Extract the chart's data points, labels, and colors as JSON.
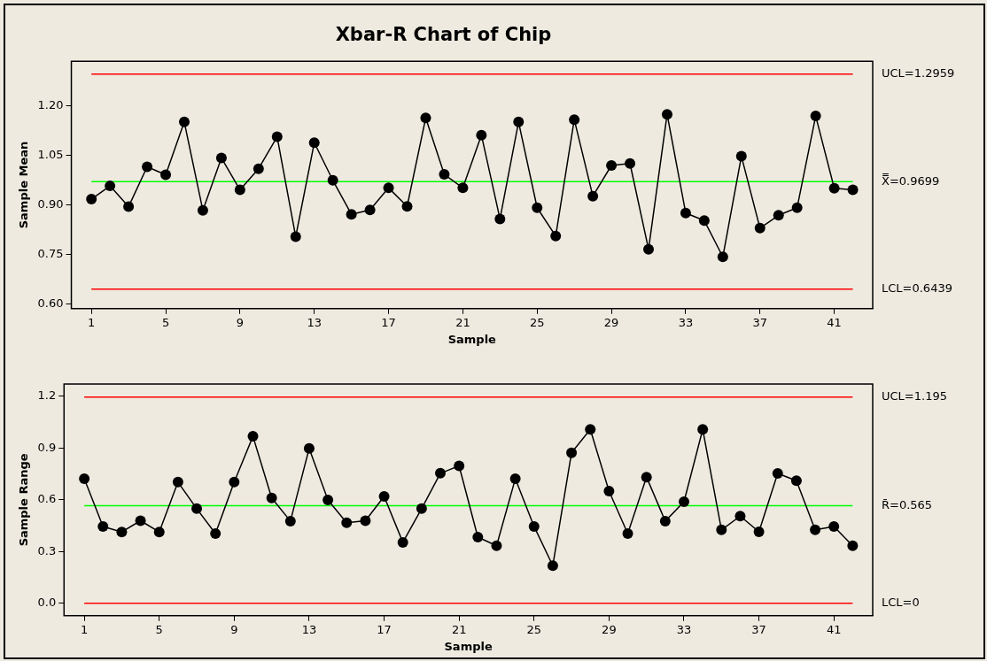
{
  "chart_data": [
    {
      "type": "line",
      "title": "Xbar-R Chart of Chip",
      "xlabel": "Sample",
      "ylabel": "Sample Mean",
      "marker": "circle",
      "grid": false,
      "x": [
        1,
        2,
        3,
        4,
        5,
        6,
        7,
        8,
        9,
        10,
        11,
        12,
        13,
        14,
        15,
        16,
        17,
        18,
        19,
        20,
        21,
        22,
        23,
        24,
        25,
        26,
        27,
        28,
        29,
        30,
        31,
        32,
        33,
        34,
        35,
        36,
        37,
        38,
        39,
        40,
        41,
        42
      ],
      "series": [
        {
          "color": "#000000",
          "values": [
            0.917,
            0.957,
            0.894,
            1.015,
            0.991,
            1.151,
            0.883,
            1.042,
            0.945,
            1.009,
            1.106,
            0.803,
            1.088,
            0.974,
            0.871,
            0.884,
            0.951,
            0.895,
            1.163,
            0.992,
            0.951,
            1.111,
            0.857,
            1.151,
            0.891,
            0.805,
            1.158,
            0.926,
            1.019,
            1.025,
            0.765,
            1.174,
            0.875,
            0.852,
            0.742,
            1.047,
            0.829,
            0.868,
            0.891,
            1.169,
            0.95,
            0.945
          ]
        }
      ],
      "xlim": [
        -0.08,
        43.07
      ],
      "xticks": [
        1,
        5,
        9,
        13,
        17,
        21,
        25,
        29,
        33,
        37,
        41
      ],
      "ylim": [
        0.585,
        1.335
      ],
      "yticks": [
        {
          "value": 0.6,
          "label": "0.60"
        },
        0.75,
        {
          "value": 0.9,
          "label": "0.90"
        },
        1.05,
        {
          "value": 1.2,
          "label": "1.20"
        }
      ],
      "ref_lines": [
        {
          "axis": "y",
          "value": 1.2959,
          "label": "UCL=1.2959",
          "color": "#ff0000"
        },
        {
          "axis": "y",
          "value": 0.9699,
          "label": "X̿=0.9699",
          "color": "#00ff00"
        },
        {
          "axis": "y",
          "value": 0.6439,
          "label": "LCL=0.6439",
          "color": "#ff0000"
        }
      ]
    },
    {
      "type": "line",
      "xlabel": "Sample",
      "ylabel": "Sample Range",
      "marker": "circle",
      "grid": false,
      "x": [
        1,
        2,
        3,
        4,
        5,
        6,
        7,
        8,
        9,
        10,
        11,
        12,
        13,
        14,
        15,
        16,
        17,
        18,
        19,
        20,
        21,
        22,
        23,
        24,
        25,
        26,
        27,
        28,
        29,
        30,
        31,
        32,
        33,
        34,
        35,
        36,
        37,
        38,
        39,
        40,
        41,
        42
      ],
      "series": [
        {
          "color": "#000000",
          "values": [
            0.722,
            0.445,
            0.413,
            0.478,
            0.413,
            0.702,
            0.548,
            0.404,
            0.702,
            0.967,
            0.61,
            0.476,
            0.897,
            0.599,
            0.467,
            0.478,
            0.619,
            0.353,
            0.548,
            0.753,
            0.796,
            0.383,
            0.333,
            0.721,
            0.445,
            0.218,
            0.872,
            1.007,
            0.65,
            0.404,
            0.731,
            0.476,
            0.588,
            1.007,
            0.425,
            0.505,
            0.414,
            0.752,
            0.71,
            0.425,
            0.445,
            0.333
          ]
        }
      ],
      "xlim": [
        -0.08,
        43.07
      ],
      "xticks": [
        1,
        5,
        9,
        13,
        17,
        21,
        25,
        29,
        33,
        37,
        41
      ],
      "ylim": [
        -0.072,
        1.27
      ],
      "yticks": [
        {
          "value": 0,
          "label": "0.0"
        },
        {
          "value": 0.3,
          "label": "0.3"
        },
        {
          "value": 0.6,
          "label": "0.6"
        },
        {
          "value": 0.9,
          "label": "0.9"
        },
        {
          "value": 1.2,
          "label": "1.2"
        }
      ],
      "ref_lines": [
        {
          "axis": "y",
          "value": 1.195,
          "label": "UCL=1.195",
          "color": "#ff0000"
        },
        {
          "axis": "y",
          "value": 0.565,
          "label": "R̄=0.565",
          "color": "#00ff00"
        },
        {
          "axis": "y",
          "value": 0,
          "label": "LCL=0",
          "color": "#ff0000"
        }
      ]
    }
  ]
}
